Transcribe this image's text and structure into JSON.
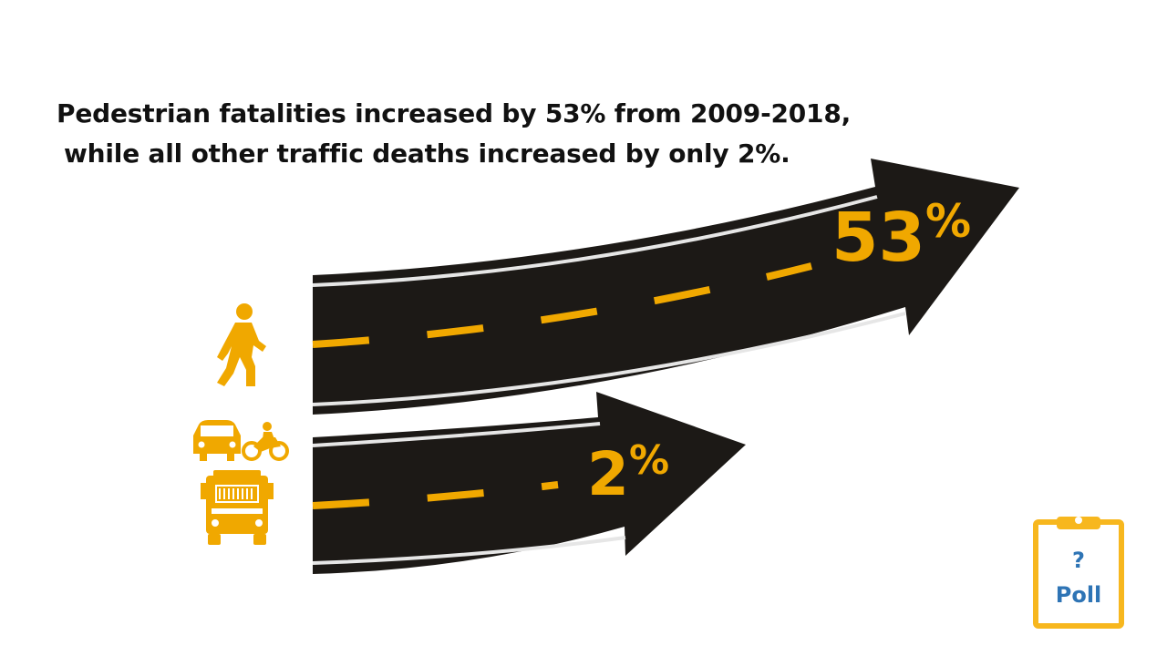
{
  "headline": {
    "line1": "Pedestrian fatalities increased by 53% from 2009-2018,",
    "line2": "while all other traffic deaths increased by only 2%."
  },
  "pedestrian_road": {
    "value": "53",
    "symbol": "%"
  },
  "vehicle_road": {
    "value": "2",
    "symbol": "%"
  },
  "poll": {
    "question_mark": "?",
    "label": "Poll"
  },
  "colors": {
    "accent": "#f0a800",
    "road": "#1c1916",
    "poll_text": "#2e74b5",
    "poll_border": "#f7b71e"
  },
  "icons": [
    "pedestrian-icon",
    "car-icon",
    "motorcycle-icon",
    "truck-icon",
    "clipboard-icon"
  ]
}
